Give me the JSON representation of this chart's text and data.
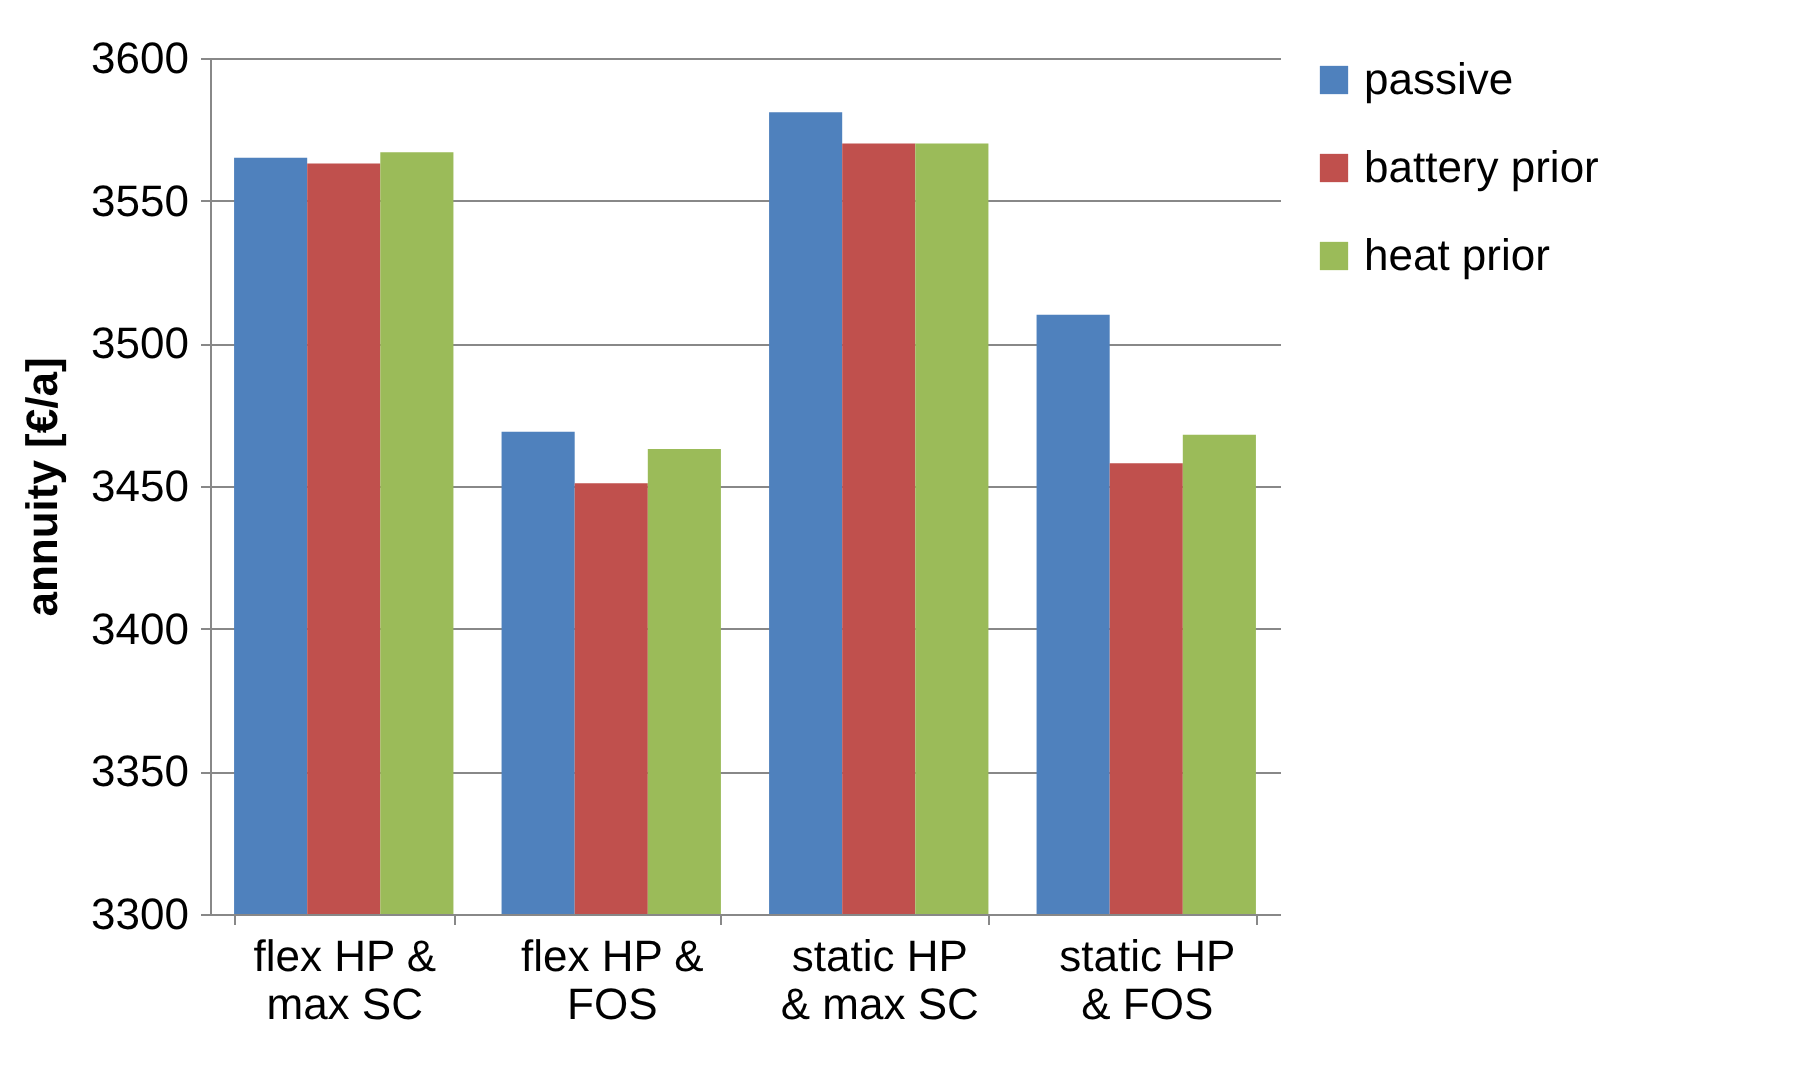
{
  "chart_data": {
    "type": "bar",
    "ylabel": "annuity [€/a]",
    "categories": [
      "flex HP & max SC",
      "flex HP & FOS",
      "static HP & max SC",
      "static HP & FOS"
    ],
    "series": [
      {
        "name": "passive",
        "color": "#4f81bd",
        "values": [
          3565,
          3469,
          3581,
          3510
        ]
      },
      {
        "name": "battery prior",
        "color": "#c0504d",
        "values": [
          3563,
          3451,
          3570,
          3458
        ]
      },
      {
        "name": "heat prior",
        "color": "#9bbb59",
        "values": [
          3567,
          3463,
          3570,
          3468
        ]
      }
    ],
    "ylim": [
      3300,
      3600
    ],
    "yticks": [
      3300,
      3350,
      3400,
      3450,
      3500,
      3550,
      3600
    ],
    "grid": "y",
    "legend": "right"
  }
}
